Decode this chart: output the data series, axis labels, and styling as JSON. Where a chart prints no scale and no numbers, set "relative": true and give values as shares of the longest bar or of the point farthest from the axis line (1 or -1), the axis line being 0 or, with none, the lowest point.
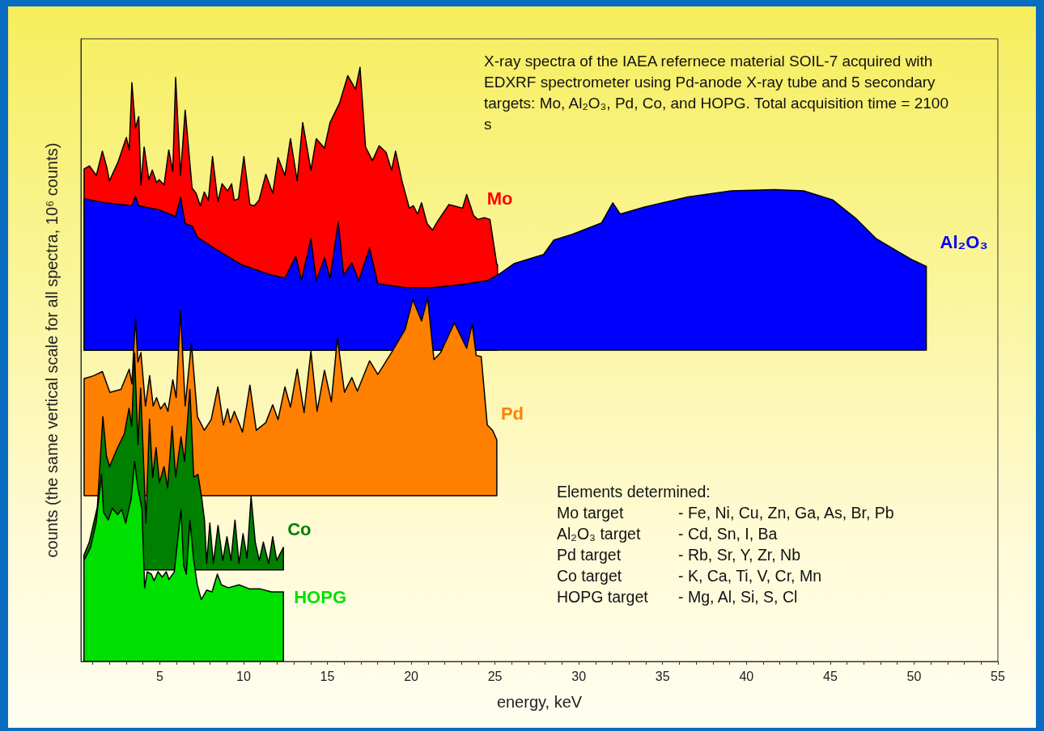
{
  "chart_data": {
    "type": "area",
    "relative": true,
    "xlabel": "energy, keV",
    "ylabel": "counts (the same vertical scale for all spectra, 10⁶ counts)",
    "xlim": [
      0.3,
      55
    ],
    "xticks": [
      {
        "value": 1,
        "label": null
      },
      {
        "value": 2,
        "label": null
      },
      {
        "value": 3,
        "label": null
      },
      {
        "value": 4,
        "label": null
      },
      5,
      {
        "value": 6,
        "label": null
      },
      {
        "value": 7,
        "label": null
      },
      {
        "value": 8,
        "label": null
      },
      {
        "value": 9,
        "label": null
      },
      10,
      {
        "value": 11,
        "label": null
      },
      {
        "value": 12,
        "label": null
      },
      {
        "value": 13,
        "label": null
      },
      {
        "value": 14,
        "label": null
      },
      15,
      {
        "value": 16,
        "label": null
      },
      {
        "value": 17,
        "label": null
      },
      {
        "value": 18,
        "label": null
      },
      {
        "value": 19,
        "label": null
      },
      20,
      {
        "value": 21,
        "label": null
      },
      {
        "value": 22,
        "label": null
      },
      {
        "value": 23,
        "label": null
      },
      {
        "value": 24,
        "label": null
      },
      25,
      {
        "value": 26,
        "label": null
      },
      {
        "value": 27,
        "label": null
      },
      {
        "value": 28,
        "label": null
      },
      {
        "value": 29,
        "label": null
      },
      30,
      {
        "value": 31,
        "label": null
      },
      {
        "value": 32,
        "label": null
      },
      {
        "value": 33,
        "label": null
      },
      {
        "value": 34,
        "label": null
      },
      35,
      {
        "value": 36,
        "label": null
      },
      {
        "value": 37,
        "label": null
      },
      {
        "value": 38,
        "label": null
      },
      {
        "value": 39,
        "label": null
      },
      40,
      {
        "value": 41,
        "label": null
      },
      {
        "value": 42,
        "label": null
      },
      {
        "value": 43,
        "label": null
      },
      {
        "value": 44,
        "label": null
      },
      45,
      {
        "value": 46,
        "label": null
      },
      {
        "value": 47,
        "label": null
      },
      {
        "value": 48,
        "label": null
      },
      {
        "value": 49,
        "label": null
      },
      50,
      {
        "value": 51,
        "label": null
      },
      {
        "value": 52,
        "label": null
      },
      {
        "value": 53,
        "label": null
      },
      {
        "value": 54,
        "label": null
      },
      55
    ],
    "annotations": [
      "X-ray spectra of the IAEA refernece material SOIL-7 acquired with EDXRF spectrometer using Pd-anode X-ray tube and 5 secondary targets: Mo, Al₂O₃, Pd, Co, and HOPG. Total acquisition time = 2100 s",
      "Elements determined:",
      "Mo target",
      "- Fe, Ni, Cu, Zn, Ga, As, Br, Pb",
      "Al₂O₃ target",
      "- Cd, Sn, I, Ba",
      "Pd target",
      "- Rb, Sr, Y, Zr, Nb",
      "Co target",
      "- K, Ca, Ti, V, Cr, Mn",
      "HOPG target",
      "- Mg, Al, Si, S, Cl"
    ],
    "series": [
      {
        "name": "Mo",
        "color": "#ff0000",
        "x": [
          0.49,
          0.49,
          0.81,
          1.22,
          1.58,
          1.84,
          2.0,
          2.52,
          3.01,
          3.18,
          3.34,
          3.55,
          3.75,
          3.88,
          4.07,
          4.35,
          4.56,
          4.81,
          4.97,
          5.26,
          5.54,
          5.78,
          5.95,
          6.24,
          6.52,
          6.93,
          7.17,
          7.42,
          7.66,
          7.9,
          8.15,
          8.47,
          8.72,
          9.05,
          9.29,
          9.45,
          9.7,
          10.02,
          10.38,
          10.64,
          10.92,
          11.33,
          11.74,
          12.06,
          12.47,
          12.8,
          13.2,
          13.53,
          14.02,
          14.34,
          14.83,
          15.16,
          15.73,
          16.22,
          16.68,
          16.95,
          17.28,
          17.69,
          18.09,
          18.5,
          18.83,
          19.07,
          19.45,
          19.89,
          20.13,
          20.38,
          20.62,
          20.95,
          21.27,
          21.6,
          22.25,
          23.07,
          23.31,
          23.72,
          23.96,
          24.37,
          24.7,
          25.11,
          25.15,
          25.15
        ],
        "values": [
          0.524,
          0.829,
          0.834,
          0.818,
          0.859,
          0.832,
          0.809,
          0.841,
          0.882,
          0.861,
          0.974,
          0.898,
          0.917,
          0.802,
          0.866,
          0.811,
          0.827,
          0.806,
          0.811,
          0.802,
          0.861,
          0.825,
          0.983,
          0.818,
          0.928,
          0.797,
          0.788,
          0.767,
          0.79,
          0.776,
          0.85,
          0.774,
          0.804,
          0.792,
          0.804,
          0.776,
          0.779,
          0.85,
          0.769,
          0.767,
          0.776,
          0.82,
          0.788,
          0.848,
          0.818,
          0.88,
          0.809,
          0.907,
          0.827,
          0.88,
          0.864,
          0.907,
          0.94,
          0.986,
          0.963,
          1,
          0.866,
          0.843,
          0.868,
          0.857,
          0.827,
          0.859,
          0.809,
          0.763,
          0.767,
          0.753,
          0.772,
          0.737,
          0.726,
          0.742,
          0.769,
          0.763,
          0.786,
          0.751,
          0.744,
          0.747,
          0.744,
          0.668,
          0.668,
          0.524
        ]
      },
      {
        "name": "Al₂O₃",
        "color": "#0000ff",
        "x": [
          0.49,
          0.49,
          1.71,
          3.34,
          3.55,
          3.75,
          4.97,
          5.95,
          6.24,
          6.52,
          6.93,
          7.25,
          8.23,
          9.86,
          11.49,
          12.47,
          13.12,
          13.45,
          14.02,
          14.34,
          14.83,
          15.16,
          15.65,
          15.97,
          16.46,
          16.87,
          17.52,
          18.01,
          19.64,
          21.27,
          22.9,
          24.54,
          25.31,
          26.17,
          27.9,
          28.5,
          29.62,
          31.35,
          32.03,
          32.47,
          33.93,
          36.52,
          39.1,
          41.68,
          43.41,
          45.14,
          46.51,
          47.72,
          48.92,
          49.96,
          50.73,
          50.73
        ],
        "values": [
          0.524,
          0.779,
          0.772,
          0.767,
          0.783,
          0.767,
          0.76,
          0.749,
          0.781,
          0.737,
          0.733,
          0.714,
          0.696,
          0.668,
          0.652,
          0.645,
          0.682,
          0.641,
          0.712,
          0.641,
          0.68,
          0.645,
          0.74,
          0.65,
          0.671,
          0.641,
          0.696,
          0.636,
          0.629,
          0.629,
          0.634,
          0.641,
          0.653,
          0.67,
          0.685,
          0.709,
          0.719,
          0.738,
          0.772,
          0.753,
          0.765,
          0.782,
          0.792,
          0.794,
          0.792,
          0.777,
          0.746,
          0.712,
          0.692,
          0.675,
          0.665,
          0.524
        ]
      },
      {
        "name": "Pd",
        "color": "#ff8000",
        "x": [
          0.49,
          0.49,
          1.06,
          1.58,
          2.03,
          2.69,
          3.18,
          3.34,
          3.55,
          3.7,
          3.88,
          4.15,
          4.4,
          4.61,
          4.81,
          5.05,
          5.3,
          5.49,
          5.78,
          5.98,
          6.24,
          6.52,
          6.89,
          7.25,
          7.66,
          8.07,
          8.47,
          8.8,
          9.05,
          9.21,
          9.45,
          9.94,
          10.38,
          10.76,
          11.33,
          11.74,
          12.06,
          12.47,
          12.8,
          13.2,
          13.61,
          14.02,
          14.39,
          14.83,
          15.24,
          15.6,
          16.02,
          16.46,
          16.79,
          17.52,
          18.01,
          18.83,
          19.64,
          20.1,
          20.62,
          20.98,
          21.36,
          21.76,
          22.58,
          23.31,
          23.64,
          23.88,
          24.18,
          24.54,
          24.86,
          25.11,
          25.11
        ],
        "values": [
          0.279,
          0.476,
          0.481,
          0.488,
          0.453,
          0.458,
          0.492,
          0.467,
          0.579,
          0.504,
          0.52,
          0.43,
          0.481,
          0.43,
          0.444,
          0.425,
          0.435,
          0.421,
          0.474,
          0.444,
          0.591,
          0.43,
          0.536,
          0.412,
          0.389,
          0.407,
          0.462,
          0.398,
          0.425,
          0.402,
          0.421,
          0.386,
          0.465,
          0.389,
          0.402,
          0.432,
          0.407,
          0.462,
          0.428,
          0.492,
          0.419,
          0.522,
          0.421,
          0.49,
          0.437,
          0.545,
          0.453,
          0.478,
          0.455,
          0.506,
          0.483,
          0.52,
          0.559,
          0.609,
          0.573,
          0.612,
          0.508,
          0.52,
          0.57,
          0.527,
          0.568,
          0.515,
          0.513,
          0.398,
          0.389,
          0.373,
          0.279
        ]
      },
      {
        "name": "Co",
        "color": "#008000",
        "x": [
          0.48,
          0.48,
          0.8,
          1.28,
          1.61,
          1.82,
          2.01,
          2.49,
          2.89,
          3.17,
          3.33,
          3.5,
          3.7,
          3.86,
          4.02,
          4.18,
          4.39,
          4.58,
          4.78,
          4.98,
          5.26,
          5.47,
          5.74,
          5.95,
          6.27,
          6.48,
          6.8,
          7.03,
          7.28,
          7.51,
          7.67,
          7.8,
          7.99,
          8.2,
          8.48,
          8.76,
          9.01,
          9.25,
          9.49,
          9.73,
          9.97,
          10.21,
          10.45,
          10.7,
          10.94,
          11.18,
          11.5,
          11.74,
          11.98,
          12.38,
          12.38
        ],
        "values": [
          0.154,
          0.179,
          0.201,
          0.26,
          0.412,
          0.346,
          0.328,
          0.36,
          0.383,
          0.426,
          0.396,
          0.519,
          0.365,
          0.46,
          0.346,
          0.233,
          0.408,
          0.31,
          0.36,
          0.301,
          0.328,
          0.292,
          0.396,
          0.31,
          0.378,
          0.337,
          0.458,
          0.31,
          0.315,
          0.274,
          0.238,
          0.165,
          0.233,
          0.165,
          0.229,
          0.17,
          0.21,
          0.17,
          0.238,
          0.165,
          0.215,
          0.174,
          0.278,
          0.201,
          0.17,
          0.201,
          0.165,
          0.21,
          0.17,
          0.192,
          0.154
        ]
      },
      {
        "name": "HOPG",
        "color": "#00e000",
        "x": [
          0.48,
          0.48,
          0.88,
          1.2,
          1.53,
          1.65,
          1.93,
          2.17,
          2.49,
          2.73,
          2.97,
          3.3,
          3.5,
          3.7,
          3.94,
          4.1,
          4.26,
          4.5,
          4.66,
          4.9,
          5.15,
          5.39,
          5.55,
          5.87,
          6.27,
          6.43,
          6.59,
          6.8,
          7.03,
          7.24,
          7.48,
          7.8,
          8.12,
          8.44,
          8.68,
          9.09,
          9.73,
          10.37,
          11.02,
          11.66,
          12.38,
          12.38
        ],
        "values": [
          0,
          0.17,
          0.192,
          0.233,
          0.315,
          0.251,
          0.238,
          0.258,
          0.247,
          0.256,
          0.233,
          0.274,
          0.337,
          0.292,
          0.256,
          0.124,
          0.151,
          0.147,
          0.136,
          0.151,
          0.142,
          0.151,
          0.138,
          0.151,
          0.256,
          0.161,
          0.147,
          0.238,
          0.17,
          0.129,
          0.104,
          0.12,
          0.117,
          0.147,
          0.129,
          0.124,
          0.129,
          0.122,
          0.122,
          0.117,
          0.117,
          0
        ]
      }
    ]
  }
}
